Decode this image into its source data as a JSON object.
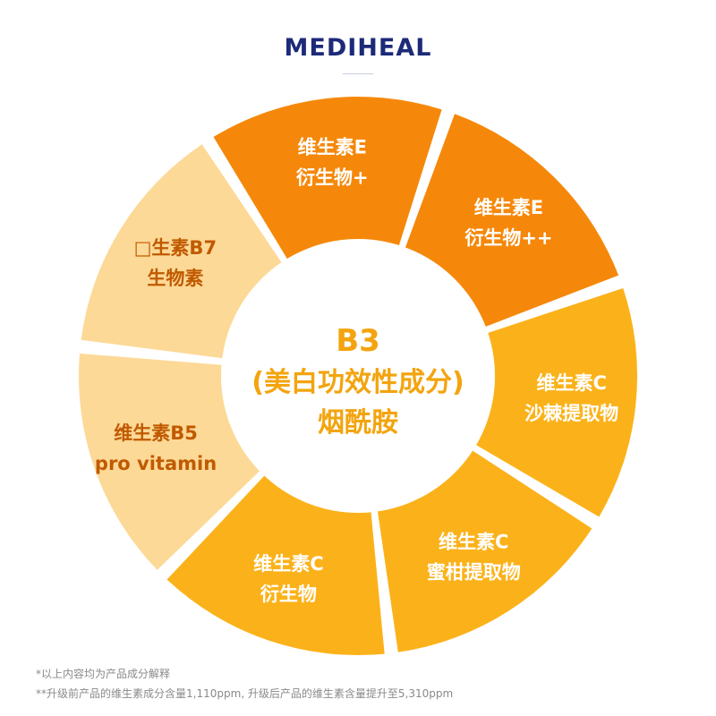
{
  "brand": "MEDIHEAL",
  "center": {
    "line1": "B3",
    "line2": "(美白功效性成分)",
    "line3": "烟酰胺"
  },
  "segments": [
    {
      "name": "vitamin-b7",
      "lines": [
        "□生素B7",
        "生物素"
      ],
      "color": "#fcd996",
      "text_color": "#c05a00"
    },
    {
      "name": "vitamin-e-derivative-plus",
      "lines": [
        "维生素E",
        "衍生物+"
      ],
      "color": "#f5880a",
      "text_color": "#ffffff"
    },
    {
      "name": "vitamin-e-derivative-plus-plus",
      "lines": [
        "维生素E",
        "衍生物++"
      ],
      "color": "#f5880a",
      "text_color": "#ffffff"
    },
    {
      "name": "vitamin-c-sea-buckthorn",
      "lines": [
        "维生素C",
        "沙棘提取物"
      ],
      "color": "#fbb21a",
      "text_color": "#ffffff"
    },
    {
      "name": "vitamin-c-citrus",
      "lines": [
        "维生素C",
        "蜜柑提取物"
      ],
      "color": "#fbb21a",
      "text_color": "#ffffff"
    },
    {
      "name": "vitamin-c-derivative",
      "lines": [
        "维生素C",
        "衍生物"
      ],
      "color": "#fbb21a",
      "text_color": "#ffffff"
    },
    {
      "name": "vitamin-b5",
      "lines": [
        "维生素B5",
        "pro vitamin"
      ],
      "color": "#fcd996",
      "text_color": "#c05a00"
    }
  ],
  "notes": {
    "note1": "*以上内容均为产品成分解释",
    "note2": "**升级前产品的维生素成分含量1,110ppm, 升级后产品的维生素含量提升至5,310ppm"
  }
}
